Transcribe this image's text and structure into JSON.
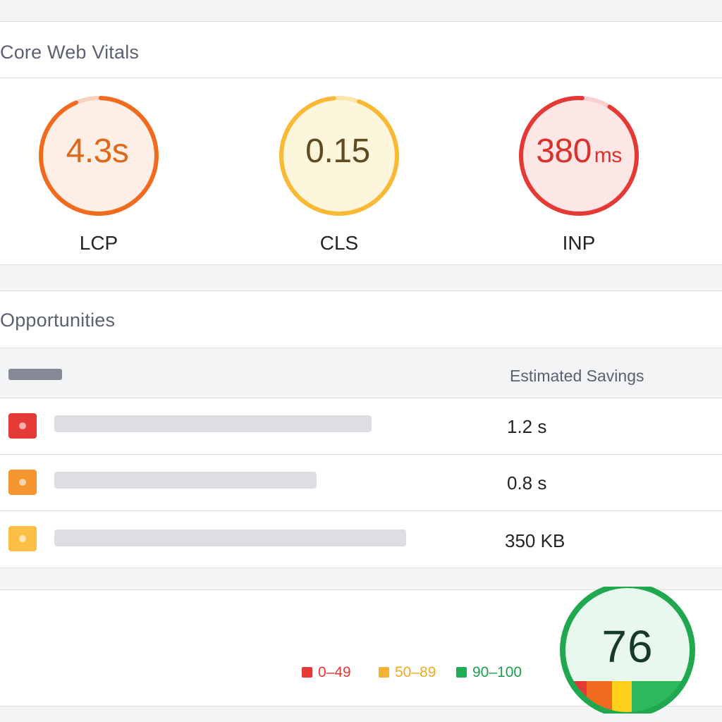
{
  "core_web_vitals": {
    "title": "Core Web Vitals",
    "metrics": [
      {
        "label": "LCP",
        "value": "4.3s",
        "unit": "",
        "color": "#f06b1d",
        "fill": "#fdeee6",
        "text_color": "#dd6a1c",
        "ring_fraction": 0.93
      },
      {
        "label": "CLS",
        "value": "0.15",
        "unit": "",
        "color": "#f9b934",
        "fill": "#fef6dc",
        "text_color": "#5f4a22",
        "ring_fraction": 0.93
      },
      {
        "label": "INP",
        "value": "380",
        "unit": "ms",
        "color": "#e53935",
        "fill": "#fde6e6",
        "text_color": "#d9322c",
        "ring_fraction": 0.92
      }
    ]
  },
  "opportunities": {
    "title": "Opportunities",
    "column_savings": "Estimated Savings",
    "rows": [
      {
        "severity": "fail",
        "icon_color": "#e53935",
        "savings": "1.2 s"
      },
      {
        "severity": "average",
        "icon_color": "#f6962e",
        "savings": "0.8 s"
      },
      {
        "severity": "minor",
        "icon_color": "#fbbf45",
        "savings": "350 KB"
      }
    ]
  },
  "legend": [
    {
      "label": "0–49",
      "color": "#e53935"
    },
    {
      "label": "50–89",
      "color": "#f5b335"
    },
    {
      "label": "90–100",
      "color": "#1fae55"
    }
  ],
  "score": {
    "value": "76",
    "ring_color": "#1fa84e",
    "fill": "#e9f8ee",
    "band_colors": [
      "#e53935",
      "#f06b1d",
      "#ffcf1c",
      "#2eb85c"
    ]
  }
}
